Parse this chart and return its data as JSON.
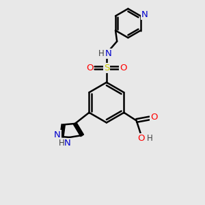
{
  "bg_color": "#e8e8e8",
  "bond_color": "#000000",
  "bond_width": 1.8,
  "atom_colors": {
    "N": "#0000cc",
    "O": "#ff0000",
    "S": "#cccc00",
    "C": "#000000",
    "H": "#404040"
  },
  "font_size": 9.5,
  "canvas_xlim": [
    0,
    10
  ],
  "canvas_ylim": [
    0,
    10
  ]
}
